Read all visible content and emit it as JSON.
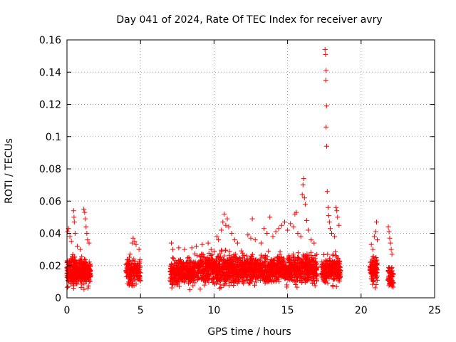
{
  "chart_data": {
    "type": "scatter",
    "title": "Day 041 of 2024, Rate Of TEC Index for receiver avry",
    "xlabel": "GPS time / hours",
    "ylabel": "ROTI / TECUs",
    "xlim": [
      0,
      25
    ],
    "ylim": [
      0,
      0.16
    ],
    "xticks": [
      0,
      5,
      10,
      15,
      20,
      25
    ],
    "yticks": [
      0,
      0.02,
      0.04,
      0.06,
      0.08,
      0.1,
      0.12,
      0.14,
      0.16
    ],
    "xtick_labels": [
      "0",
      "5",
      "10",
      "15",
      "20",
      "25"
    ],
    "ytick_labels": [
      "0",
      "0.02",
      "0.04",
      "0.06",
      "0.08",
      "0.1",
      "0.12",
      "0.14",
      "0.16"
    ],
    "grid": true,
    "marker": "+",
    "color": "#ff0000",
    "clusters": [
      {
        "x": [
          0.0,
          1.6
        ],
        "ymin": 0.004,
        "ymax": 0.028,
        "count": 420
      },
      {
        "x": [
          4.0,
          5.0
        ],
        "ymin": 0.005,
        "ymax": 0.028,
        "count": 160
      },
      {
        "x": [
          7.0,
          9.0
        ],
        "ymin": 0.004,
        "ymax": 0.028,
        "count": 380
      },
      {
        "x": [
          9.0,
          12.0
        ],
        "ymin": 0.004,
        "ymax": 0.032,
        "count": 600
      },
      {
        "x": [
          12.0,
          15.0
        ],
        "ymin": 0.005,
        "ymax": 0.03,
        "count": 560
      },
      {
        "x": [
          15.0,
          17.0
        ],
        "ymin": 0.006,
        "ymax": 0.03,
        "count": 420
      },
      {
        "x": [
          17.3,
          18.6
        ],
        "ymin": 0.005,
        "ymax": 0.03,
        "count": 240
      },
      {
        "x": [
          20.6,
          21.1
        ],
        "ymin": 0.005,
        "ymax": 0.03,
        "count": 110
      },
      {
        "x": [
          21.8,
          22.2
        ],
        "ymin": 0.004,
        "ymax": 0.022,
        "count": 70
      }
    ],
    "points": [
      [
        0.05,
        0.041
      ],
      [
        0.1,
        0.043
      ],
      [
        0.2,
        0.038
      ],
      [
        0.3,
        0.035
      ],
      [
        0.45,
        0.054
      ],
      [
        0.48,
        0.05
      ],
      [
        0.5,
        0.047
      ],
      [
        0.55,
        0.04
      ],
      [
        0.7,
        0.032
      ],
      [
        0.9,
        0.03
      ],
      [
        1.15,
        0.055
      ],
      [
        1.2,
        0.053
      ],
      [
        1.25,
        0.049
      ],
      [
        1.3,
        0.044
      ],
      [
        1.35,
        0.04
      ],
      [
        1.4,
        0.036
      ],
      [
        1.5,
        0.034
      ],
      [
        4.45,
        0.034
      ],
      [
        4.5,
        0.037
      ],
      [
        4.6,
        0.035
      ],
      [
        4.7,
        0.033
      ],
      [
        4.9,
        0.03
      ],
      [
        7.1,
        0.034
      ],
      [
        7.2,
        0.03
      ],
      [
        7.6,
        0.031
      ],
      [
        8.0,
        0.03
      ],
      [
        8.5,
        0.031
      ],
      [
        8.8,
        0.032
      ],
      [
        9.2,
        0.033
      ],
      [
        9.6,
        0.034
      ],
      [
        9.8,
        0.03
      ],
      [
        10.2,
        0.038
      ],
      [
        10.3,
        0.036
      ],
      [
        10.5,
        0.042
      ],
      [
        10.6,
        0.047
      ],
      [
        10.7,
        0.052
      ],
      [
        10.8,
        0.045
      ],
      [
        10.9,
        0.049
      ],
      [
        11.0,
        0.044
      ],
      [
        11.2,
        0.04
      ],
      [
        11.4,
        0.036
      ],
      [
        11.6,
        0.034
      ],
      [
        12.3,
        0.039
      ],
      [
        12.5,
        0.037
      ],
      [
        12.6,
        0.049
      ],
      [
        12.8,
        0.036
      ],
      [
        13.2,
        0.034
      ],
      [
        13.4,
        0.043
      ],
      [
        13.6,
        0.04
      ],
      [
        13.8,
        0.05
      ],
      [
        14.0,
        0.038
      ],
      [
        14.2,
        0.041
      ],
      [
        14.4,
        0.043
      ],
      [
        14.6,
        0.045
      ],
      [
        14.8,
        0.047
      ],
      [
        15.0,
        0.042
      ],
      [
        15.2,
        0.046
      ],
      [
        15.4,
        0.044
      ],
      [
        15.5,
        0.052
      ],
      [
        15.6,
        0.053
      ],
      [
        15.7,
        0.04
      ],
      [
        15.9,
        0.038
      ],
      [
        16.0,
        0.064
      ],
      [
        16.05,
        0.07
      ],
      [
        16.1,
        0.074
      ],
      [
        16.15,
        0.062
      ],
      [
        16.2,
        0.058
      ],
      [
        16.3,
        0.048
      ],
      [
        16.4,
        0.042
      ],
      [
        16.6,
        0.036
      ],
      [
        16.8,
        0.034
      ],
      [
        17.55,
        0.154
      ],
      [
        17.58,
        0.151
      ],
      [
        17.62,
        0.141
      ],
      [
        17.6,
        0.135
      ],
      [
        17.65,
        0.119
      ],
      [
        17.62,
        0.106
      ],
      [
        17.66,
        0.094
      ],
      [
        17.7,
        0.066
      ],
      [
        17.75,
        0.056
      ],
      [
        17.8,
        0.051
      ],
      [
        17.85,
        0.047
      ],
      [
        17.9,
        0.043
      ],
      [
        18.0,
        0.04
      ],
      [
        18.2,
        0.038
      ],
      [
        18.3,
        0.056
      ],
      [
        18.35,
        0.054
      ],
      [
        18.4,
        0.05
      ],
      [
        18.5,
        0.045
      ],
      [
        20.7,
        0.033
      ],
      [
        20.8,
        0.03
      ],
      [
        20.9,
        0.038
      ],
      [
        21.0,
        0.041
      ],
      [
        21.05,
        0.047
      ],
      [
        21.1,
        0.036
      ],
      [
        21.85,
        0.044
      ],
      [
        21.9,
        0.041
      ],
      [
        21.95,
        0.037
      ],
      [
        22.0,
        0.034
      ],
      [
        22.05,
        0.03
      ],
      [
        22.1,
        0.027
      ]
    ]
  }
}
